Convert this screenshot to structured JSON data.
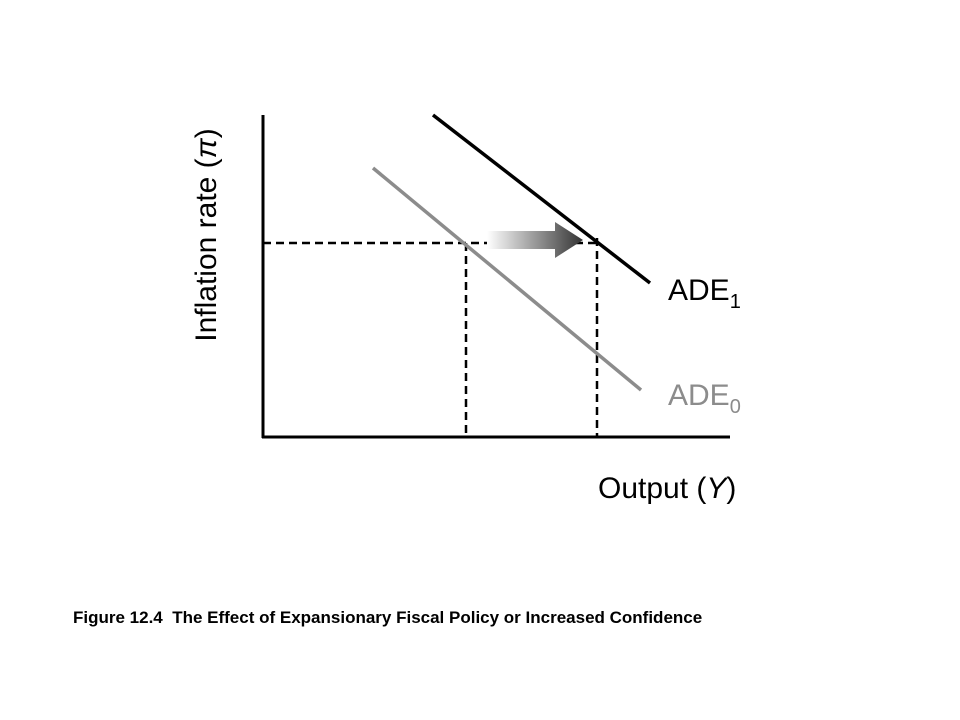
{
  "diagram": {
    "y_axis": {
      "prefix": "Inflation rate (",
      "symbol": "π",
      "suffix": ")"
    },
    "x_axis": {
      "prefix": "Output (",
      "symbol": "Y",
      "suffix": ")"
    },
    "curves": [
      {
        "label": "ADE",
        "subscript": "1"
      },
      {
        "label": "ADE",
        "subscript": "0"
      }
    ],
    "caption": "Figure 12.4  The Effect of Expansionary Fiscal Policy or Increased Confidence"
  }
}
